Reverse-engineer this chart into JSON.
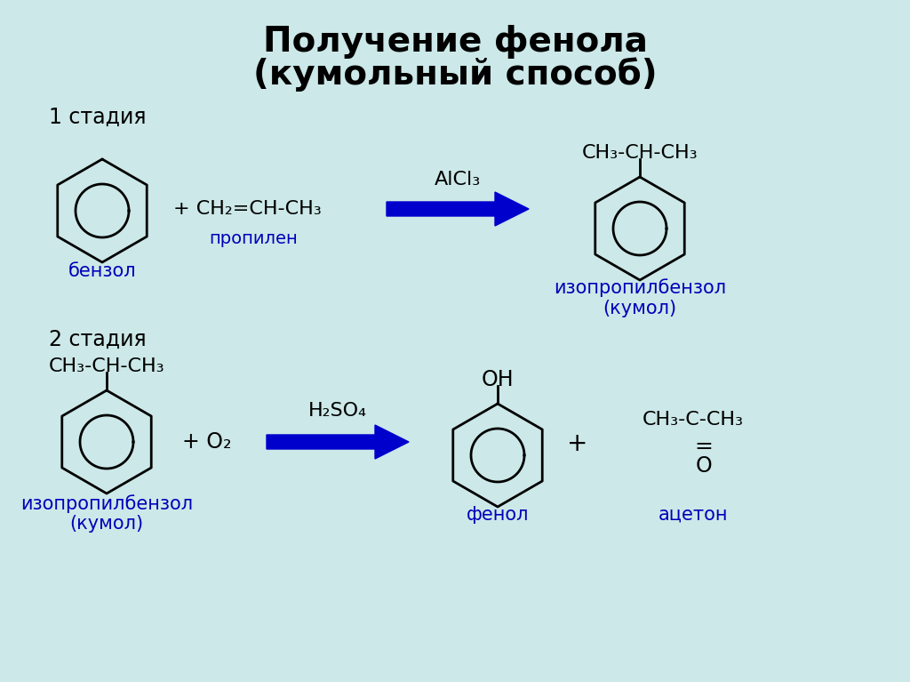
{
  "title_line1": "Получение фенола",
  "title_line2": "(кумольный способ)",
  "bg_color": "#cce8e8",
  "text_color": "#000000",
  "blue_color": "#0000bb",
  "arrow_color": "#0000cc",
  "stage1_label": "1 стадия",
  "stage2_label": "2 стадия",
  "benzol_label": "бензол",
  "propilen_label": "пропилен",
  "cumol_label1_line1": "изопропилбензол",
  "cumol_label1_line2": "(кумол)",
  "cumol_label2_line1": "изопропилбензол",
  "cumol_label2_line2": "(кумол)",
  "fenol_label": "фенол",
  "aceton_label": "ацетон",
  "reaction1_reagent": "+ CH₂=CH-CH₃",
  "reaction1_catalyst": "AlCl₃",
  "reaction1_product_top": "CH₃-CH-CH₃",
  "reaction2_reagent": "+ O₂",
  "reaction2_catalyst": "H₂SO₄",
  "reaction2_product_oh": "OH",
  "reaction2_product_acetone": "CH₃-C-CH₃",
  "reaction2_product_eq": "=",
  "reaction2_product_acetone2": "O",
  "title_fontsize": 28,
  "label_fontsize": 15,
  "formula_fontsize": 16,
  "stage_fontsize": 17,
  "catalyst_fontsize": 16
}
